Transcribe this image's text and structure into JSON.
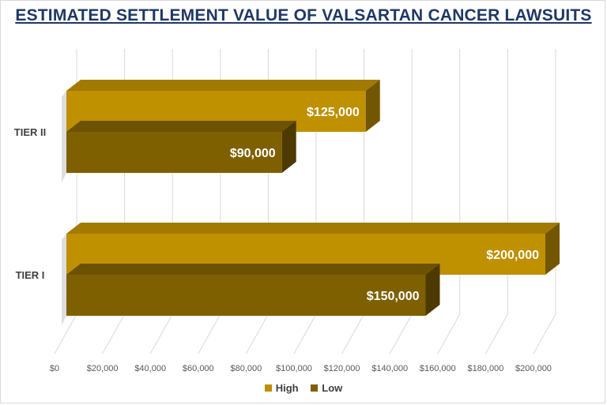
{
  "chart_data": {
    "type": "bar",
    "orientation": "horizontal",
    "title": "ESTIMATED SETTLEMENT VALUE OF VALSARTAN CANCER LAWSUITS",
    "categories": [
      "TIER II",
      "TIER I"
    ],
    "series": [
      {
        "name": "High",
        "values": [
          125000,
          200000
        ],
        "labels": [
          "$125,000",
          "$200,000"
        ],
        "color": "#bf9000"
      },
      {
        "name": "Low",
        "values": [
          90000,
          150000
        ],
        "labels": [
          "$90,000",
          "$150,000"
        ],
        "color": "#7f6000"
      }
    ],
    "xlim": [
      0,
      200000
    ],
    "x_ticks": [
      0,
      20000,
      40000,
      60000,
      80000,
      100000,
      120000,
      140000,
      160000,
      180000,
      200000
    ],
    "x_tick_labels": [
      "$0",
      "$20,000",
      "$40,000",
      "$60,000",
      "$80,000",
      "$100,000",
      "$120,000",
      "$140,000",
      "$160,000",
      "$180,000",
      "$200,000"
    ],
    "grid": true,
    "legend": "bottom",
    "three_d": true
  }
}
